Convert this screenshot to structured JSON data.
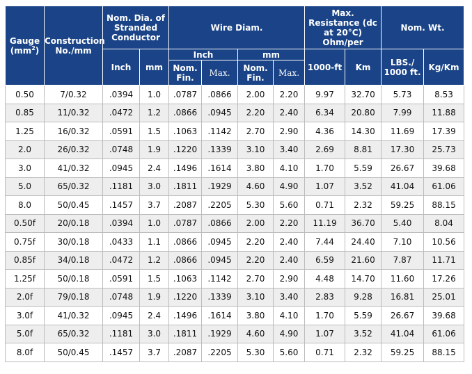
{
  "header": {
    "gauge": "Gauge (mm",
    "gauge_sup": "2",
    "gauge_tail": ")",
    "construction": "Construction No./mm",
    "nom_dia": "Nom. Dia. of Stranded Conductor",
    "wire_diam": "Wire Diam.",
    "max_resistance": "Max. Resistance (dc at 20°C) Ohm/per",
    "nom_wt": "Nom. Wt.",
    "inch": "Inch",
    "mm": "mm",
    "wire_inch": "Inch",
    "wire_mm": "mm",
    "nom_fin": "Nom. Fin.",
    "max": "Max.",
    "res_1000ft": "1000-ft",
    "res_km": "Km",
    "lbs_1000ft": "LBS./ 1000 ft.",
    "kg_km": "Kg/Km"
  },
  "rows": [
    [
      "0.50",
      "7/0.32",
      ".0394",
      "1.0",
      ".0787",
      ".0866",
      "2.00",
      "2.20",
      "9.97",
      "32.70",
      "5.73",
      "8.53"
    ],
    [
      "0.85",
      "11/0.32",
      ".0472",
      "1.2",
      ".0866",
      ".0945",
      "2.20",
      "2.40",
      "6.34",
      "20.80",
      "7.99",
      "11.88"
    ],
    [
      "1.25",
      "16/0.32",
      ".0591",
      "1.5",
      ".1063",
      ".1142",
      "2.70",
      "2.90",
      "4.36",
      "14.30",
      "11.69",
      "17.39"
    ],
    [
      "2.0",
      "26/0.32",
      ".0748",
      "1.9",
      ".1220",
      ".1339",
      "3.10",
      "3.40",
      "2.69",
      "8.81",
      "17.30",
      "25.73"
    ],
    [
      "3.0",
      "41/0.32",
      ".0945",
      "2.4",
      ".1496",
      ".1614",
      "3.80",
      "4.10",
      "1.70",
      "5.59",
      "26.67",
      "39.68"
    ],
    [
      "5.0",
      "65/0.32",
      ".1181",
      "3.0",
      ".1811",
      ".1929",
      "4.60",
      "4.90",
      "1.07",
      "3.52",
      "41.04",
      "61.06"
    ],
    [
      "8.0",
      "50/0.45",
      ".1457",
      "3.7",
      ".2087",
      ".2205",
      "5.30",
      "5.60",
      "0.71",
      "2.32",
      "59.25",
      "88.15"
    ],
    [
      "0.50f",
      "20/0.18",
      ".0394",
      "1.0",
      ".0787",
      ".0866",
      "2.00",
      "2.20",
      "11.19",
      "36.70",
      "5.40",
      "8.04"
    ],
    [
      "0.75f",
      "30/0.18",
      ".0433",
      "1.1",
      ".0866",
      ".0945",
      "2.20",
      "2.40",
      "7.44",
      "24.40",
      "7.10",
      "10.56"
    ],
    [
      "0.85f",
      "34/0.18",
      ".0472",
      "1.2",
      ".0866",
      ".0945",
      "2.20",
      "2.40",
      "6.59",
      "21.60",
      "7.87",
      "11.71"
    ],
    [
      "1.25f",
      "50/0.18",
      ".0591",
      "1.5",
      ".1063",
      ".1142",
      "2.70",
      "2.90",
      "4.48",
      "14.70",
      "11.60",
      "17.26"
    ],
    [
      "2.0f",
      "79/0.18",
      ".0748",
      "1.9",
      ".1220",
      ".1339",
      "3.10",
      "3.40",
      "2.83",
      "9.28",
      "16.81",
      "25.01"
    ],
    [
      "3.0f",
      "41/0.32",
      ".0945",
      "2.4",
      ".1496",
      ".1614",
      "3.80",
      "4.10",
      "1.70",
      "5.59",
      "26.67",
      "39.68"
    ],
    [
      "5.0f",
      "65/0.32",
      ".1181",
      "3.0",
      ".1811",
      ".1929",
      "4.60",
      "4.90",
      "1.07",
      "3.52",
      "41.04",
      "61.06"
    ],
    [
      "8.0f",
      "50/0.45",
      ".1457",
      "3.7",
      ".2087",
      ".2205",
      "5.30",
      "5.60",
      "0.71",
      "2.32",
      "59.25",
      "88.15"
    ]
  ]
}
